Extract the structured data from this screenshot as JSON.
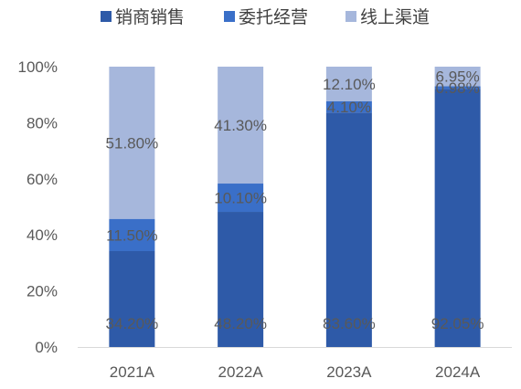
{
  "chart_data": {
    "type": "bar",
    "stacked": true,
    "categories": [
      "2021A",
      "2022A",
      "2023A",
      "2024A"
    ],
    "series": [
      {
        "name": "销商销售",
        "color": "#2e5aa8",
        "values": [
          34.2,
          48.2,
          83.6,
          92.05
        ],
        "labels": [
          "34.20%",
          "48.20%",
          "83.60%",
          "92.05%"
        ]
      },
      {
        "name": "委托经营",
        "color": "#3a6fc8",
        "values": [
          11.5,
          10.1,
          4.1,
          0.98
        ],
        "labels": [
          "11.50%",
          "10.10%",
          "4.10%",
          "0.98%"
        ]
      },
      {
        "name": "线上渠道",
        "color": "#a6b7dc",
        "values": [
          51.8,
          41.3,
          12.1,
          6.95
        ],
        "labels": [
          "51.80%",
          "41.30%",
          "12.10%",
          "6.95%"
        ]
      }
    ],
    "ylim": [
      0,
      100
    ],
    "yticks": [
      "0%",
      "20%",
      "40%",
      "60%",
      "80%",
      "100%"
    ],
    "grid": false,
    "legend": "top"
  }
}
